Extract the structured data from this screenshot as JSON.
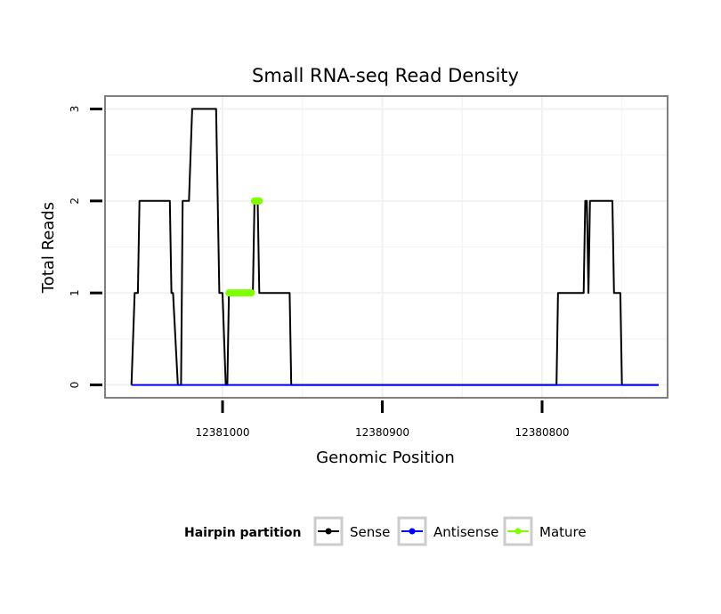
{
  "chart_data": {
    "type": "line",
    "title": "Small RNA-seq Read Density",
    "xlabel": "Genomic Position",
    "ylabel": "Total Reads",
    "xlim": [
      12381073,
      12380722
    ],
    "ylim": [
      -0.13,
      3.13
    ],
    "x_reversed": true,
    "x_ticks": [
      12381000,
      12380900,
      12380800
    ],
    "x_tick_labels": [
      "12381000",
      "12380900",
      "12380800"
    ],
    "y_ticks": [
      0,
      1,
      2,
      3
    ],
    "y_tick_labels": [
      "0",
      "1",
      "2",
      "3"
    ],
    "grid": true,
    "legend": {
      "title": "Hairpin partition",
      "position": "bottom",
      "entries": [
        "Sense",
        "Antisense",
        "Mature"
      ]
    },
    "series": [
      {
        "name": "Sense",
        "color": "#000000",
        "points": [
          [
            12381057,
            0
          ],
          [
            12381055,
            1
          ],
          [
            12381053,
            1
          ],
          [
            12381052,
            2
          ],
          [
            12381033,
            2
          ],
          [
            12381032,
            1
          ],
          [
            12381031,
            1
          ],
          [
            12381028,
            0
          ],
          [
            12381026,
            0
          ],
          [
            12381025,
            2
          ],
          [
            12381021,
            2
          ],
          [
            12381019,
            3
          ],
          [
            12381004,
            3
          ],
          [
            12381002,
            1
          ],
          [
            12381000,
            1
          ],
          [
            12380998,
            0
          ],
          [
            12380997,
            0
          ],
          [
            12380996,
            1
          ],
          [
            12380981,
            1
          ],
          [
            12380980,
            2
          ],
          [
            12380978,
            2
          ],
          [
            12380977,
            1
          ],
          [
            12380958,
            1
          ],
          [
            12380957,
            0
          ],
          [
            12380791,
            0
          ],
          [
            12380790,
            1
          ],
          [
            12380774,
            1
          ],
          [
            12380773,
            2
          ],
          [
            12380772,
            2
          ],
          [
            12380771,
            1
          ],
          [
            12380770,
            2
          ],
          [
            12380756,
            2
          ],
          [
            12380755,
            1
          ],
          [
            12380751,
            1
          ],
          [
            12380750,
            0
          ],
          [
            12380727,
            0
          ]
        ]
      },
      {
        "name": "Antisense",
        "color": "#0000ff",
        "points": [
          [
            12381057,
            0
          ],
          [
            12380727,
            0
          ]
        ]
      },
      {
        "name": "Mature",
        "color": "#7fff00",
        "segments": [
          [
            [
              12380996,
              1
            ],
            [
              12380982,
              1
            ]
          ],
          [
            [
              12380980,
              2
            ],
            [
              12380977,
              2
            ]
          ]
        ]
      }
    ]
  }
}
